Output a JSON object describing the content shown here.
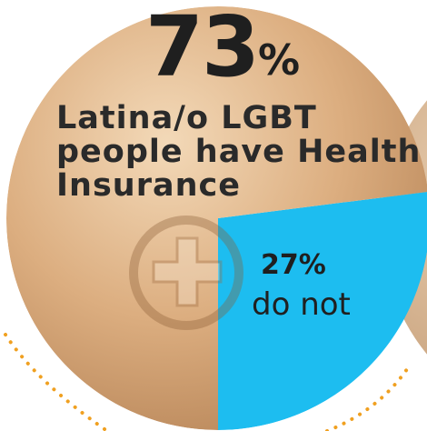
{
  "chart_data": {
    "type": "pie",
    "slices": [
      {
        "label": "Latina/o LGBT people have Health Insurance",
        "value": 73,
        "color": "#d9a879"
      },
      {
        "label": "do not",
        "value": 27,
        "color": "#1dbdf0"
      }
    ],
    "headline": {
      "value": "73",
      "unit": "%",
      "caption_lines": [
        "Latina/o LGBT",
        "people have Health",
        "Insurance"
      ]
    },
    "slice_callout": {
      "value": "27%",
      "caption": "do not"
    }
  },
  "colors": {
    "insured_slice": "#d9a879",
    "not_insured_slice": "#1dbdf0",
    "dotted_accent": "#f0a020",
    "neighbor_circle": "#c8a27c"
  }
}
